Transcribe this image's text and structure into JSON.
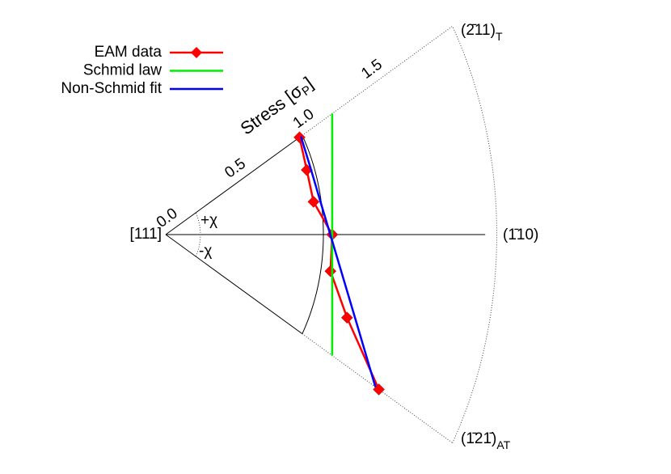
{
  "chart_data": {
    "type": "polar",
    "r_label": [
      "Stress [σ",
      "P",
      "]"
    ],
    "theta_labels": {
      "plus": "+χ",
      "minus": "-χ"
    },
    "directions": {
      "center": "[111]",
      "middle": "(1̄10)",
      "top": "(2̄11)",
      "top_sub": "T",
      "bottom": "(1̄21̄)",
      "bottom_sub": "AT"
    },
    "theta": [
      30,
      20,
      10,
      0,
      -10,
      -20,
      -30
    ],
    "thetalim": [
      -30,
      30
    ],
    "rlim": [
      0,
      2.1
    ],
    "rticks": [
      {
        "value": 0,
        "label": "0.0"
      },
      0.5,
      {
        "value": 1,
        "label": "1.0"
      },
      1.5
    ],
    "series": [
      {
        "name": "EAM data",
        "color": "#ff0000",
        "marker": "diamond",
        "values": [
          0.98,
          0.952,
          0.952,
          1.056,
          1.061,
          1.224,
          1.561
        ]
      },
      {
        "name": "Schmid law",
        "color": "#00ee00",
        "values": [
          1.219,
          1.124,
          1.072,
          1.056,
          1.072,
          1.124,
          1.219
        ]
      },
      {
        "name": "Non-Schmid fit",
        "color": "#0000ff",
        "values": [
          0.99,
          0.978,
          0.994,
          1.044,
          1.135,
          1.286,
          1.536
        ]
      }
    ]
  }
}
